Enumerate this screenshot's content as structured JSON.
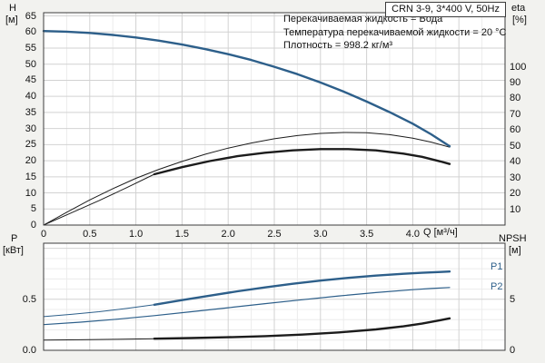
{
  "title_box": "CRN 3-9, 3*400 V, 50Hz",
  "annotations": [
    "Перекачиваемая жидкость = Вода",
    "Температура перекачиваемой жидкости = 20 °C",
    "Плотность = 998.2 кг/м³"
  ],
  "axes": {
    "top_left_sym": "H",
    "top_left_unit": "[м]",
    "top_right_sym": "eta",
    "top_right_unit": "[%]",
    "bottom_left_sym": "P",
    "bottom_left_unit": "[кВт]",
    "bottom_right_sym": "NPSH",
    "bottom_right_unit": "[м]",
    "x_label": "Q [м³/ч]"
  },
  "curve_labels": {
    "p1": "P1",
    "p2": "P2"
  },
  "colors": {
    "curve_blue": "#2d5f8a",
    "curve_black": "#1c1c1c",
    "grid_major": "#d2d2d2",
    "grid_minor": "#ececec",
    "frame": "#3c3c3c",
    "page_bg": "#f2f2ef",
    "plot_bg": "#ffffff",
    "text": "#111111"
  },
  "chart_data": [
    {
      "id": "head-capacity",
      "type": "line",
      "x_range": [
        0,
        5.0
      ],
      "y_range": [
        0,
        66
      ],
      "x_minor_step": 0.25,
      "x_major_step": 0.5,
      "y_major_step": 5,
      "x_tick_values": [
        0,
        0.5,
        1,
        1.5,
        2,
        2.5,
        3,
        3.5,
        4
      ],
      "x_tick_labels": [
        "0",
        "0.5",
        "1.0",
        "1.5",
        "2.0",
        "2.5",
        "3.0",
        "3.5",
        "4.0"
      ],
      "y_tick_values": [
        0,
        5,
        10,
        15,
        20,
        25,
        30,
        35,
        40,
        45,
        50,
        55,
        60,
        65
      ],
      "y_tick_labels": [
        "0",
        "5",
        "10",
        "15",
        "20",
        "25",
        "30",
        "35",
        "40",
        "45",
        "50",
        "55",
        "60",
        "65"
      ],
      "right_axis": {
        "scale_to_left": 0.492,
        "tick_values": [
          10,
          20,
          30,
          40,
          50,
          60,
          70,
          80,
          90,
          100
        ],
        "tick_labels": [
          "10",
          "20",
          "30",
          "40",
          "50",
          "60",
          "70",
          "80",
          "90",
          "100"
        ]
      },
      "series": [
        {
          "name": "efficiency-range-curve",
          "axis": "right",
          "color": "#1c1c1c",
          "width": 1,
          "x": [
            0,
            0.25,
            0.5,
            0.75,
            1,
            1.25,
            1.5,
            1.75,
            2,
            2.25,
            2.5,
            2.75,
            3,
            3.25,
            3.5,
            3.75,
            4,
            4.2,
            4.4
          ],
          "y": [
            0,
            8.1,
            15.9,
            23.0,
            29.5,
            35.2,
            40.2,
            44.7,
            48.6,
            51.8,
            54.5,
            56.5,
            57.9,
            58.5,
            58.3,
            57.1,
            54.9,
            52.4,
            49.2
          ]
        },
        {
          "name": "efficiency-pump-curve-lead",
          "axis": "right",
          "color": "#1c1c1c",
          "width": 1,
          "x": [
            0,
            0.3,
            0.6,
            0.9,
            1.2
          ],
          "y": [
            0,
            7.7,
            15.4,
            23.6,
            32.1
          ]
        },
        {
          "name": "efficiency-pump-curve",
          "axis": "right",
          "color": "#1c1c1c",
          "width": 2.4,
          "x": [
            1.2,
            1.5,
            1.8,
            2.1,
            2.4,
            2.7,
            3,
            3.3,
            3.6,
            3.9,
            4.1,
            4.3,
            4.4
          ],
          "y": [
            32.1,
            36.6,
            40.4,
            43.5,
            45.7,
            47.2,
            48.0,
            48.0,
            47.2,
            45.1,
            43.1,
            40.2,
            38.6
          ]
        },
        {
          "name": "head-curve",
          "axis": "left",
          "color": "#2d5f8a",
          "width": 2.4,
          "x": [
            0,
            0.25,
            0.5,
            0.75,
            1,
            1.25,
            1.5,
            1.75,
            2,
            2.25,
            2.5,
            2.75,
            3,
            3.25,
            3.5,
            3.75,
            4,
            4.2,
            4.4
          ],
          "y": [
            60.3,
            60.1,
            59.7,
            59.1,
            58.3,
            57.3,
            56.1,
            54.7,
            53.1,
            51.3,
            49.2,
            46.9,
            44.3,
            41.5,
            38.4,
            35.1,
            31.5,
            28.2,
            24.5
          ]
        }
      ]
    },
    {
      "id": "power-npsh",
      "type": "line",
      "x_range": [
        0,
        5.0
      ],
      "y_range": [
        0,
        1.05
      ],
      "x_minor_step": 0.25,
      "x_major_step": 0.5,
      "y_major_step": 0.5,
      "y_minor_step": 0.1,
      "x_tick_values": [],
      "x_tick_labels": [],
      "y_tick_values": [
        0,
        0.5
      ],
      "y_tick_labels": [
        "0.0",
        "0.5"
      ],
      "right_axis": {
        "scale_to_left": 0.1,
        "tick_values": [
          0,
          5
        ],
        "tick_labels": [
          "0",
          "5"
        ]
      },
      "series": [
        {
          "name": "p2-power-curve",
          "axis": "left",
          "color": "#2d5f8a",
          "width": 1.2,
          "x": [
            0,
            0.4,
            0.8,
            1.2,
            1.6,
            2,
            2.4,
            2.8,
            3.2,
            3.6,
            4,
            4.2,
            4.4
          ],
          "y": [
            0.252,
            0.276,
            0.305,
            0.34,
            0.378,
            0.417,
            0.457,
            0.496,
            0.533,
            0.566,
            0.594,
            0.606,
            0.616
          ]
        },
        {
          "name": "p1-power-curve-lead",
          "axis": "left",
          "color": "#2d5f8a",
          "width": 1,
          "x": [
            0,
            0.3,
            0.6,
            0.9,
            1.2
          ],
          "y": [
            0.33,
            0.352,
            0.378,
            0.41,
            0.447
          ]
        },
        {
          "name": "p1-power-curve",
          "axis": "left",
          "color": "#2d5f8a",
          "width": 2.4,
          "x": [
            1.2,
            1.5,
            1.8,
            2.1,
            2.4,
            2.7,
            3,
            3.3,
            3.6,
            3.9,
            4.1,
            4.3,
            4.4
          ],
          "y": [
            0.447,
            0.492,
            0.536,
            0.578,
            0.617,
            0.652,
            0.683,
            0.71,
            0.732,
            0.75,
            0.76,
            0.768,
            0.772
          ]
        },
        {
          "name": "npsh-curve-lead",
          "axis": "right",
          "color": "#1c1c1c",
          "width": 1,
          "x": [
            0,
            0.4,
            0.8,
            1.2
          ],
          "y": [
            1.0,
            1.03,
            1.08,
            1.14
          ]
        },
        {
          "name": "npsh-curve",
          "axis": "right",
          "color": "#1c1c1c",
          "width": 2.4,
          "x": [
            1.2,
            1.6,
            2,
            2.4,
            2.8,
            3.2,
            3.6,
            3.9,
            4.1,
            4.3,
            4.4
          ],
          "y": [
            1.14,
            1.2,
            1.28,
            1.39,
            1.54,
            1.75,
            2.05,
            2.35,
            2.62,
            2.95,
            3.13
          ]
        }
      ]
    }
  ]
}
